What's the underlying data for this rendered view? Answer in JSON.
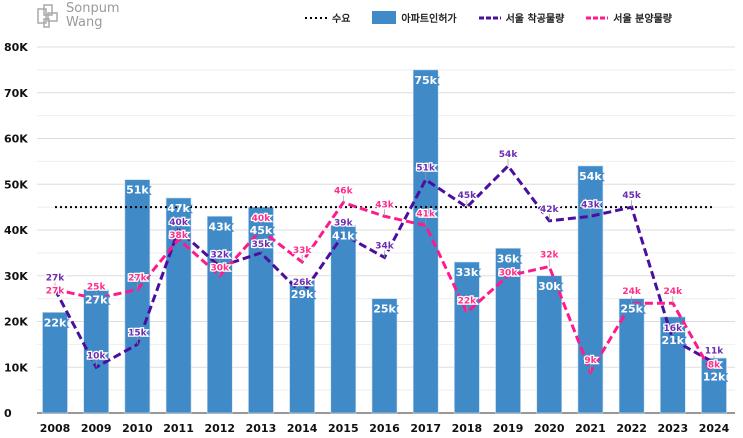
{
  "brand": {
    "logo_text_1": "Sonpum",
    "logo_text_2": "Wang"
  },
  "chart_data": {
    "type": "bar",
    "categories": [
      "2008",
      "2009",
      "2010",
      "2011",
      "2012",
      "2013",
      "2014",
      "2015",
      "2016",
      "2017",
      "2018",
      "2019",
      "2020",
      "2021",
      "2022",
      "2023",
      "2024"
    ],
    "ylim": [
      0,
      80000
    ],
    "yticks": [
      "0",
      "10K",
      "20K",
      "30K",
      "40K",
      "50K",
      "60K",
      "70K",
      "80K"
    ],
    "grid": true,
    "legend_position": "top",
    "series": [
      {
        "name": "수요",
        "kind": "line-dotted",
        "color": "#000000",
        "values": [
          45,
          45,
          45,
          45,
          45,
          45,
          45,
          45,
          45,
          45,
          45,
          45,
          45,
          45,
          45,
          45,
          45
        ]
      },
      {
        "name": "아파트인허가",
        "kind": "bar",
        "color": "#418ac8",
        "values": [
          22,
          27,
          51,
          47,
          43,
          45,
          29,
          41,
          25,
          75,
          33,
          36,
          30,
          54,
          25,
          21,
          12
        ]
      },
      {
        "name": "서울 착공물량",
        "kind": "line-dashed",
        "color": "#4b0fa0",
        "values": [
          27,
          10,
          15,
          40,
          32,
          35,
          26,
          39,
          34,
          51,
          45,
          54,
          42,
          43,
          45,
          16,
          11
        ]
      },
      {
        "name": "서울 분양물량",
        "kind": "line-dashed",
        "color": "#ff1a8c",
        "values": [
          27,
          25,
          27,
          38,
          30,
          40,
          33,
          46,
          43,
          41,
          22,
          30,
          32,
          9,
          24,
          24,
          8
        ]
      }
    ],
    "unit": "thousand units (labels shown as 'k')"
  }
}
